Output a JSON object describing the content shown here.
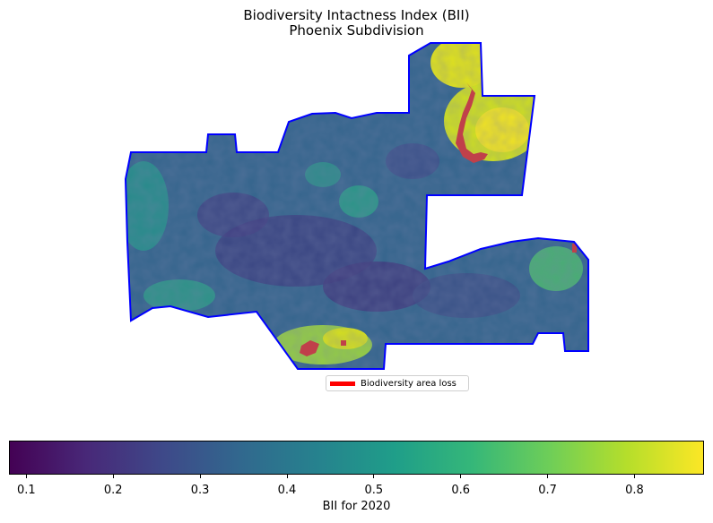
{
  "title": {
    "line1": "Biodiversity Intactness Index (BII)",
    "line2": "Phoenix Subdivision"
  },
  "legend": {
    "label": "Biodiversity area loss",
    "color": "#ff0000"
  },
  "map": {
    "boundary_color": "#0000ff",
    "loss_color": "#c0404a"
  },
  "colorbar": {
    "label": "BII for 2020",
    "colormap": "viridis",
    "colors": [
      "#440154",
      "#482878",
      "#3e4989",
      "#31688e",
      "#26828e",
      "#1f9e89",
      "#35b779",
      "#6ece58",
      "#b5de2b",
      "#fde725"
    ],
    "range": [
      0.08,
      0.88
    ],
    "ticks": [
      "0.1",
      "0.2",
      "0.3",
      "0.4",
      "0.5",
      "0.6",
      "0.7",
      "0.8"
    ]
  }
}
